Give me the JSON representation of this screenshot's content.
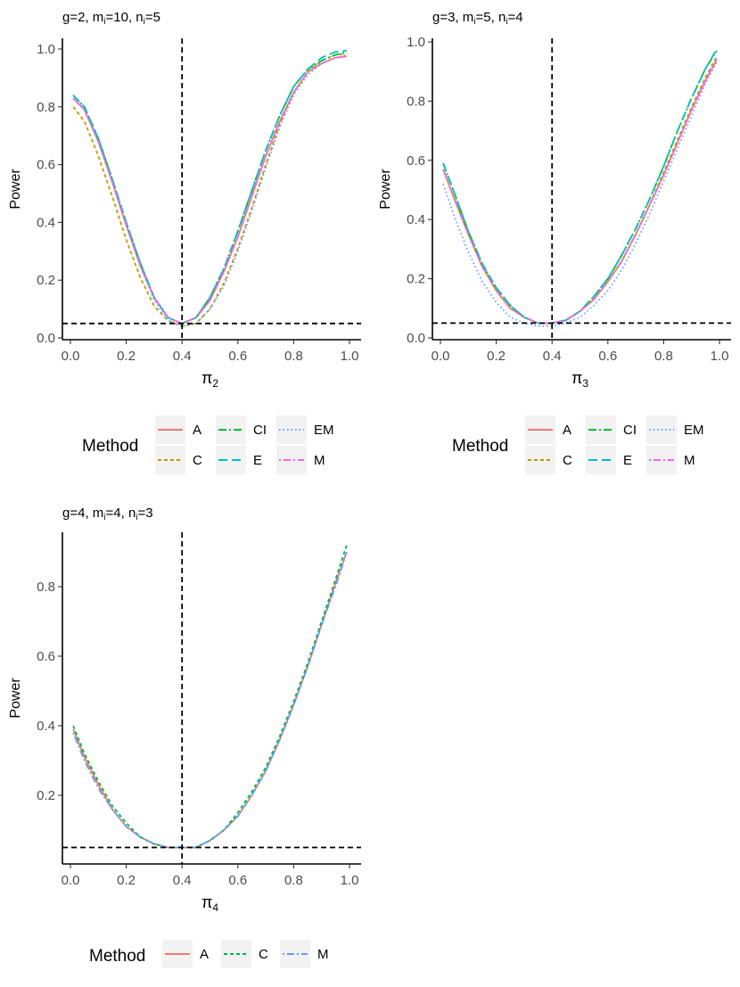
{
  "methods": {
    "A": {
      "color": "#F8766D",
      "dash": "solid"
    },
    "C": {
      "color": "#B79F00",
      "dash": "short-dash"
    },
    "CI": {
      "color": "#00BA38",
      "dash": "dash-dot"
    },
    "E": {
      "color": "#00BFC4",
      "dash": "long-dash"
    },
    "EM": {
      "color": "#619CFF",
      "dash": "dotted"
    },
    "M": {
      "color": "#F564E3",
      "dash": "dot-dash"
    },
    "C_panel3": {
      "color": "#00BA38"
    },
    "M_panel3": {
      "color": "#619CFF"
    }
  },
  "chart_data": [
    {
      "type": "line",
      "title_parts": [
        "g=2, m",
        "i",
        "=10, n",
        "i",
        "=5"
      ],
      "xlabel": "π",
      "xlabel_sub": "2",
      "ylabel": "Power",
      "xlim": [
        0.0,
        1.0
      ],
      "ylim": [
        0.0,
        1.0
      ],
      "xticks": [
        "0.0",
        "0.2",
        "0.4",
        "0.6",
        "0.8",
        "1.0"
      ],
      "yticks": [
        "0.0",
        "0.2",
        "0.4",
        "0.6",
        "0.8",
        "1.0"
      ],
      "reference_lines": {
        "x": 0.4,
        "y": 0.05
      },
      "x": [
        0.01,
        0.05,
        0.1,
        0.15,
        0.2,
        0.25,
        0.3,
        0.35,
        0.4,
        0.45,
        0.5,
        0.55,
        0.6,
        0.65,
        0.7,
        0.75,
        0.8,
        0.85,
        0.9,
        0.95,
        0.99
      ],
      "series": [
        {
          "name": "A",
          "values": [
            0.83,
            0.79,
            0.68,
            0.54,
            0.39,
            0.25,
            0.14,
            0.07,
            0.05,
            0.07,
            0.13,
            0.23,
            0.35,
            0.49,
            0.63,
            0.75,
            0.85,
            0.92,
            0.95,
            0.97,
            0.975
          ]
        },
        {
          "name": "C",
          "values": [
            0.8,
            0.75,
            0.63,
            0.49,
            0.34,
            0.21,
            0.11,
            0.06,
            0.04,
            0.05,
            0.1,
            0.19,
            0.31,
            0.45,
            0.6,
            0.74,
            0.85,
            0.92,
            0.96,
            0.98,
            0.985
          ]
        },
        {
          "name": "CI",
          "values": [
            0.84,
            0.8,
            0.69,
            0.55,
            0.4,
            0.26,
            0.14,
            0.07,
            0.05,
            0.07,
            0.14,
            0.24,
            0.37,
            0.51,
            0.65,
            0.77,
            0.87,
            0.93,
            0.96,
            0.98,
            0.99
          ]
        },
        {
          "name": "E",
          "values": [
            0.84,
            0.8,
            0.69,
            0.55,
            0.4,
            0.26,
            0.14,
            0.07,
            0.05,
            0.07,
            0.14,
            0.24,
            0.37,
            0.51,
            0.65,
            0.77,
            0.87,
            0.93,
            0.97,
            0.99,
            0.995
          ]
        },
        {
          "name": "EM",
          "values": [
            0.83,
            0.79,
            0.68,
            0.54,
            0.39,
            0.25,
            0.13,
            0.06,
            0.04,
            0.05,
            0.1,
            0.18,
            0.3,
            0.44,
            0.59,
            0.73,
            0.84,
            0.91,
            0.95,
            0.97,
            0.98
          ]
        },
        {
          "name": "M",
          "values": [
            0.83,
            0.79,
            0.68,
            0.54,
            0.39,
            0.25,
            0.14,
            0.07,
            0.05,
            0.07,
            0.13,
            0.23,
            0.35,
            0.49,
            0.63,
            0.75,
            0.85,
            0.92,
            0.95,
            0.97,
            0.975
          ]
        }
      ],
      "legend": {
        "title": "Method",
        "entries": [
          "A",
          "C",
          "CI",
          "E",
          "EM",
          "M"
        ]
      }
    },
    {
      "type": "line",
      "title_parts": [
        "g=3, m",
        "i",
        "=5, n",
        "i",
        "=4"
      ],
      "xlabel": "π",
      "xlabel_sub": "3",
      "ylabel": "Power",
      "xlim": [
        0.0,
        1.0
      ],
      "ylim": [
        0.0,
        1.0
      ],
      "xticks": [
        "0.0",
        "0.2",
        "0.4",
        "0.6",
        "0.8",
        "1.0"
      ],
      "yticks": [
        "0.0",
        "0.2",
        "0.4",
        "0.6",
        "0.8",
        "1.0"
      ],
      "reference_lines": {
        "x": 0.4,
        "y": 0.05
      },
      "x": [
        0.01,
        0.05,
        0.1,
        0.15,
        0.2,
        0.25,
        0.3,
        0.35,
        0.4,
        0.45,
        0.5,
        0.55,
        0.6,
        0.65,
        0.7,
        0.75,
        0.8,
        0.85,
        0.9,
        0.95,
        0.99
      ],
      "series": [
        {
          "name": "A",
          "values": [
            0.57,
            0.47,
            0.35,
            0.24,
            0.16,
            0.1,
            0.07,
            0.05,
            0.05,
            0.06,
            0.09,
            0.13,
            0.19,
            0.26,
            0.35,
            0.45,
            0.55,
            0.66,
            0.77,
            0.87,
            0.94
          ]
        },
        {
          "name": "C",
          "values": [
            0.57,
            0.47,
            0.35,
            0.24,
            0.16,
            0.1,
            0.07,
            0.05,
            0.05,
            0.06,
            0.09,
            0.13,
            0.19,
            0.26,
            0.35,
            0.45,
            0.56,
            0.67,
            0.78,
            0.88,
            0.95
          ]
        },
        {
          "name": "CI",
          "values": [
            0.59,
            0.49,
            0.36,
            0.25,
            0.17,
            0.11,
            0.07,
            0.05,
            0.05,
            0.06,
            0.09,
            0.14,
            0.2,
            0.28,
            0.37,
            0.47,
            0.58,
            0.7,
            0.81,
            0.91,
            0.97
          ]
        },
        {
          "name": "E",
          "values": [
            0.59,
            0.49,
            0.36,
            0.25,
            0.17,
            0.11,
            0.07,
            0.05,
            0.05,
            0.06,
            0.09,
            0.14,
            0.2,
            0.28,
            0.37,
            0.47,
            0.58,
            0.7,
            0.81,
            0.91,
            0.975
          ]
        },
        {
          "name": "EM",
          "values": [
            0.52,
            0.41,
            0.29,
            0.19,
            0.12,
            0.07,
            0.05,
            0.04,
            0.04,
            0.05,
            0.07,
            0.11,
            0.16,
            0.23,
            0.32,
            0.42,
            0.53,
            0.64,
            0.75,
            0.86,
            0.93
          ]
        },
        {
          "name": "M",
          "values": [
            0.57,
            0.47,
            0.35,
            0.24,
            0.16,
            0.1,
            0.07,
            0.05,
            0.05,
            0.06,
            0.09,
            0.13,
            0.19,
            0.26,
            0.35,
            0.45,
            0.55,
            0.66,
            0.77,
            0.87,
            0.94
          ]
        }
      ],
      "legend": {
        "title": "Method",
        "entries": [
          "A",
          "C",
          "CI",
          "E",
          "EM",
          "M"
        ]
      }
    },
    {
      "type": "line",
      "title_parts": [
        "g=4, m",
        "i",
        "=4, n",
        "i",
        "=3"
      ],
      "xlabel": "π",
      "xlabel_sub": "4",
      "ylabel": "Power",
      "xlim": [
        0.0,
        1.0
      ],
      "ylim": [
        0.05,
        0.95
      ],
      "xticks": [
        "0.0",
        "0.2",
        "0.4",
        "0.6",
        "0.8",
        "1.0"
      ],
      "yticks": [
        "0.2",
        "0.4",
        "0.6",
        "0.8"
      ],
      "reference_lines": {
        "x": 0.4,
        "y": 0.05
      },
      "x": [
        0.01,
        0.05,
        0.1,
        0.15,
        0.2,
        0.25,
        0.3,
        0.35,
        0.4,
        0.45,
        0.5,
        0.55,
        0.6,
        0.65,
        0.7,
        0.75,
        0.8,
        0.85,
        0.9,
        0.95,
        0.99
      ],
      "series": [
        {
          "name": "A",
          "values": [
            0.39,
            0.31,
            0.23,
            0.16,
            0.11,
            0.08,
            0.06,
            0.05,
            0.05,
            0.05,
            0.07,
            0.1,
            0.14,
            0.2,
            0.27,
            0.36,
            0.46,
            0.57,
            0.69,
            0.81,
            0.9
          ]
        },
        {
          "name": "C",
          "values": [
            0.4,
            0.32,
            0.24,
            0.17,
            0.12,
            0.08,
            0.06,
            0.05,
            0.05,
            0.05,
            0.07,
            0.1,
            0.15,
            0.21,
            0.28,
            0.37,
            0.47,
            0.58,
            0.7,
            0.82,
            0.92
          ]
        },
        {
          "name": "M",
          "values": [
            0.38,
            0.3,
            0.22,
            0.16,
            0.11,
            0.08,
            0.06,
            0.05,
            0.05,
            0.05,
            0.07,
            0.1,
            0.14,
            0.2,
            0.27,
            0.36,
            0.46,
            0.57,
            0.69,
            0.8,
            0.9
          ]
        }
      ],
      "legend": {
        "title": "Method",
        "entries": [
          "A",
          "C",
          "M"
        ]
      }
    }
  ]
}
